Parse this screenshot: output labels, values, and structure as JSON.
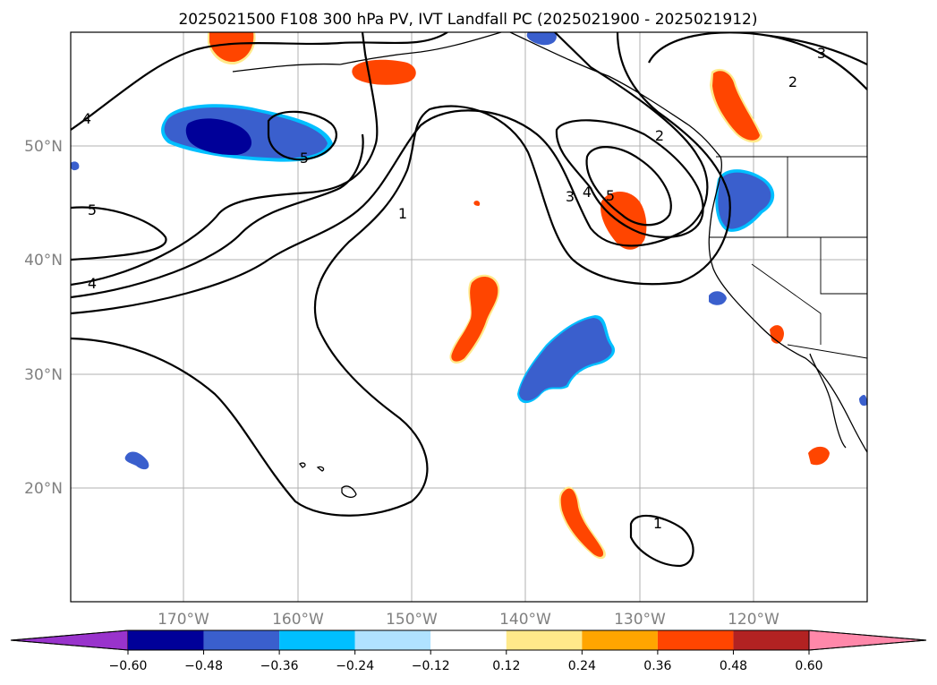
{
  "title": "2025021500 F108 300 hPa PV, IVT Landfall PC (2025021900 - 2025021912)",
  "latitude_labels": [
    "50°N",
    "40°N",
    "30°N",
    "20°N"
  ],
  "longitude_labels": [
    "170°W",
    "160°W",
    "150°W",
    "140°W",
    "130°W",
    "120°W"
  ],
  "contour_labels": [
    "4",
    "5",
    "5",
    "4",
    "1",
    "3",
    "4",
    "5",
    "2",
    "2",
    "3",
    "1"
  ],
  "colorbar": {
    "tick_labels": [
      "−0.60",
      "−0.48",
      "−0.36",
      "−0.24",
      "−0.12",
      "0.12",
      "0.24",
      "0.36",
      "0.48",
      "0.60"
    ],
    "colors": [
      "#9933cc",
      "#000099",
      "#3a5fcd",
      "#00bfff",
      "#b0e2ff",
      "#ffffff",
      "#ffe98a",
      "#ffa500",
      "#ff4500",
      "#b22222",
      "#ff88aa"
    ],
    "extend": "both"
  },
  "colors": {
    "positive_anomaly": "#ff4500",
    "negative_anomaly": "#3a5fcd",
    "strong_negative": "#000099",
    "gridline": "#b0b0b0",
    "label_gray": "#808080"
  }
}
